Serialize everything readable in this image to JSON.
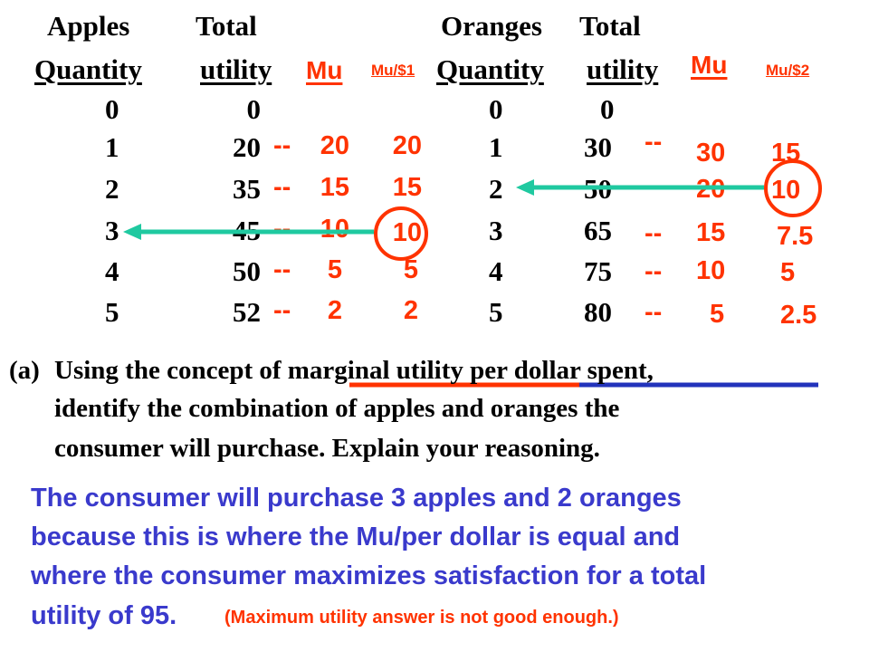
{
  "apples": {
    "header_quantity": [
      "Apples",
      "Quantity"
    ],
    "header_total": [
      "Total",
      "utility"
    ],
    "mu_label": "Mu",
    "mu_per_dollar_label": "Mu/$1",
    "quantities": [
      "0",
      "1",
      "2",
      "3",
      "4",
      "5"
    ],
    "total_utility": [
      "0",
      "20",
      "35",
      "45",
      "50",
      "52"
    ],
    "dashes": [
      "--",
      "--",
      "--",
      "--",
      "--"
    ],
    "mu": [
      "20",
      "15",
      "10",
      "5",
      "2"
    ],
    "mu_per_dollar": [
      "20",
      "15",
      "10",
      "5",
      "2"
    ]
  },
  "oranges": {
    "header_quantity": [
      "Oranges",
      "Quantity"
    ],
    "header_total": [
      "Total",
      "utility"
    ],
    "mu_label": "Mu",
    "mu_per_dollar_label": "Mu/$2",
    "quantities": [
      "0",
      "1",
      "2",
      "3",
      "4",
      "5"
    ],
    "total_utility": [
      "0",
      "30",
      "50",
      "65",
      "75",
      "80"
    ],
    "dashes": [
      "--",
      "--",
      "--",
      "--"
    ],
    "mu": [
      "30",
      "20",
      "15",
      "10",
      "5"
    ],
    "mu_per_dollar": [
      "15",
      "10",
      "7.5",
      "5",
      "2.5"
    ]
  },
  "question": {
    "label": "(a)",
    "line1_pre": "Using the concept of ",
    "line1_u1": "marginal utility",
    "line1_u2": " per dollar spent",
    "line1_post": ",",
    "line2": "identify the combination of apples and oranges the",
    "line3": "consumer will purchase.  Explain your reasoning."
  },
  "answer": {
    "line1": "The consumer will purchase 3 apples and 2 oranges",
    "line2": "because this is where the Mu/per dollar is equal and",
    "line3": "where the consumer maximizes satisfaction for a total",
    "line4": "utility of 95.",
    "note": "(Maximum utility answer is not good enough.)"
  },
  "colors": {
    "red": "#ff3300",
    "teal": "#1fc9a0",
    "blue": "#3a3acc",
    "underline_blue": "#2233bb"
  }
}
